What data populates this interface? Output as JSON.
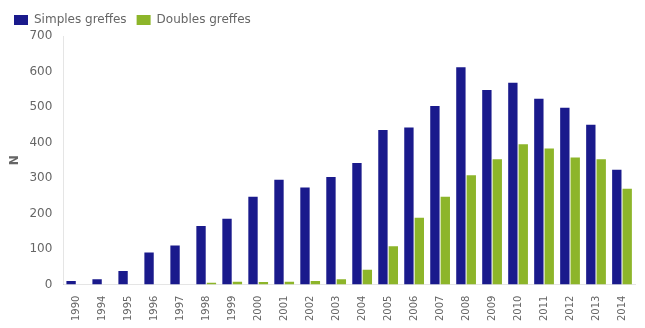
{
  "chart_data": {
    "type": "bar",
    "categories": [
      "1990",
      "1994",
      "1995",
      "1996",
      "1997",
      "1998",
      "1999",
      "2000",
      "2001",
      "2002",
      "2003",
      "2004",
      "2005",
      "2006",
      "2007",
      "2008",
      "2009",
      "2010",
      "2011",
      "2012",
      "2013",
      "2014"
    ],
    "series": [
      {
        "name": "Simples greffes",
        "color": "#1a1a8c",
        "values": [
          10,
          15,
          38,
          90,
          110,
          165,
          185,
          247,
          295,
          273,
          303,
          342,
          435,
          442,
          503,
          612,
          548,
          568,
          523,
          498,
          450,
          323
        ]
      },
      {
        "name": "Doubles greffes",
        "color": "#8db52a",
        "values": [
          0,
          0,
          0,
          0,
          0,
          5,
          8,
          7,
          8,
          10,
          15,
          42,
          108,
          188,
          247,
          308,
          353,
          395,
          383,
          358,
          353,
          270
        ]
      }
    ],
    "ylabel": "N",
    "ylim": [
      0,
      700
    ],
    "yticks": [
      0,
      100,
      200,
      300,
      400,
      500,
      600,
      700
    ],
    "grid": false,
    "legend": "upper left"
  }
}
